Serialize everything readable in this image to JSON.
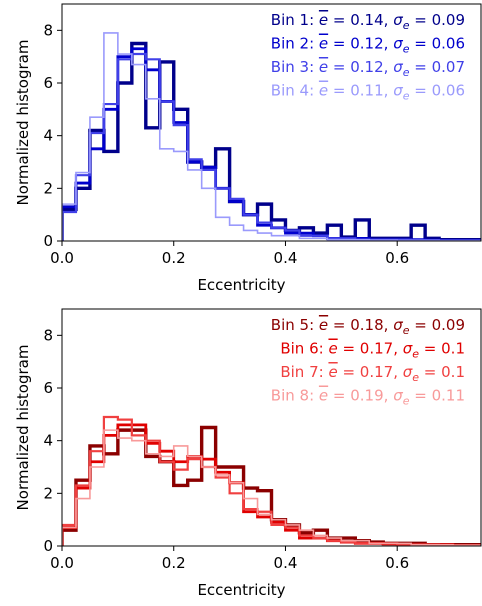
{
  "chart_data": [
    {
      "type": "histogram-step",
      "xlabel": "Eccentricity",
      "ylabel": "Normalized histogram",
      "xlim": [
        0.0,
        0.75
      ],
      "ylim": [
        0,
        9
      ],
      "xticks": [
        "0.0",
        "0.2",
        "0.4",
        "0.6"
      ],
      "yticks": [
        "0",
        "2",
        "4",
        "6",
        "8"
      ],
      "legend_position": "top-right",
      "bin_width": 0.025,
      "series": [
        {
          "name": "Bin 1: ē = 0.14, σe = 0.09",
          "color": "#00008b",
          "stroke": 3.4,
          "values": [
            1.2,
            2.0,
            4.2,
            3.4,
            6.0,
            7.5,
            4.3,
            6.8,
            5.0,
            3.0,
            2.8,
            3.5,
            1.5,
            1.0,
            1.4,
            0.8,
            0.4,
            0.5,
            0.3,
            0.6,
            0.15,
            0.8,
            0.1,
            0.1,
            0.1,
            0.6,
            0.1,
            0.05,
            0.05,
            0.05
          ]
        },
        {
          "name": "Bin 2: ē = 0.12, σe = 0.06",
          "color": "#0000cd",
          "stroke": 2.8,
          "values": [
            1.3,
            2.2,
            3.5,
            5.0,
            7.0,
            7.3,
            6.5,
            5.3,
            4.5,
            3.0,
            2.8,
            2.0,
            1.5,
            1.0,
            0.6,
            0.5,
            0.3,
            0.3,
            0.2,
            0.1,
            0.1,
            0.1,
            0.05,
            0.05,
            0.05,
            0.05,
            0.03,
            0.02,
            0.02,
            0.02
          ]
        },
        {
          "name": "Bin 3: ē = 0.12, σe = 0.07",
          "color": "#4040e8",
          "stroke": 2.2,
          "values": [
            1.1,
            2.5,
            4.1,
            5.2,
            6.9,
            7.1,
            6.9,
            5.3,
            4.4,
            3.1,
            2.7,
            2.0,
            1.6,
            1.0,
            0.7,
            0.5,
            0.4,
            0.2,
            0.2,
            0.1,
            0.1,
            0.05,
            0.05,
            0.05,
            0.05,
            0.03,
            0.03,
            0.02,
            0.02,
            0.02
          ]
        },
        {
          "name": "Bin 4: ē = 0.11, σe = 0.06",
          "color": "#9a9afc",
          "stroke": 1.6,
          "values": [
            1.4,
            2.6,
            4.7,
            7.9,
            7.1,
            6.7,
            5.4,
            3.5,
            3.4,
            2.7,
            2.0,
            0.9,
            0.6,
            0.4,
            0.3,
            0.2,
            0.2,
            0.1,
            0.1,
            0.05,
            0.05,
            0.05,
            0.03,
            0.03,
            0.02,
            0.02,
            0.02,
            0.01,
            0.01,
            0.01
          ]
        }
      ]
    },
    {
      "type": "histogram-step",
      "xlabel": "Eccentricity",
      "ylabel": "Normalized histogram",
      "xlim": [
        0.0,
        0.75
      ],
      "ylim": [
        0,
        9
      ],
      "xticks": [
        "0.0",
        "0.2",
        "0.4",
        "0.6"
      ],
      "yticks": [
        "0",
        "2",
        "4",
        "6",
        "8"
      ],
      "legend_position": "top-right",
      "bin_width": 0.025,
      "series": [
        {
          "name": "Bin 5: ē = 0.18, σe = 0.09",
          "color": "#8b0000",
          "stroke": 3.4,
          "values": [
            0.6,
            2.5,
            3.8,
            3.5,
            4.4,
            4.4,
            3.4,
            3.2,
            2.3,
            2.5,
            4.5,
            3.0,
            3.0,
            2.2,
            2.1,
            1.0,
            0.8,
            0.5,
            0.6,
            0.3,
            0.3,
            0.2,
            0.15,
            0.1,
            0.1,
            0.1,
            0.05,
            0.05,
            0.05,
            0.05
          ]
        },
        {
          "name": "Bin 6: ē = 0.17, σe = 0.1",
          "color": "#e00000",
          "stroke": 2.8,
          "values": [
            0.7,
            2.2,
            3.2,
            4.2,
            4.6,
            4.6,
            3.9,
            3.6,
            3.2,
            3.4,
            3.3,
            2.8,
            2.4,
            1.3,
            1.1,
            0.9,
            0.6,
            0.3,
            0.3,
            0.2,
            0.15,
            0.1,
            0.1,
            0.08,
            0.05,
            0.05,
            0.05,
            0.05,
            0.02,
            0.02
          ]
        },
        {
          "name": "Bin 7: ē = 0.17, σe = 0.1",
          "color": "#f04040",
          "stroke": 2.2,
          "values": [
            0.8,
            2.3,
            3.6,
            4.9,
            4.8,
            4.2,
            4.0,
            3.2,
            2.9,
            3.3,
            3.0,
            2.6,
            2.0,
            1.4,
            1.3,
            0.8,
            0.7,
            0.4,
            0.3,
            0.2,
            0.15,
            0.1,
            0.1,
            0.1,
            0.05,
            0.05,
            0.05,
            0.03,
            0.02,
            0.02
          ]
        },
        {
          "name": "Bin 8: ē = 0.19, σe = 0.11",
          "color": "#f89a9a",
          "stroke": 1.6,
          "values": [
            0.7,
            1.8,
            3.0,
            4.4,
            4.1,
            4.0,
            3.5,
            3.4,
            3.8,
            3.4,
            3.0,
            2.7,
            2.4,
            1.8,
            1.2,
            1.0,
            0.8,
            0.6,
            0.4,
            0.3,
            0.2,
            0.2,
            0.1,
            0.1,
            0.1,
            0.05,
            0.05,
            0.05,
            0.03,
            0.03
          ]
        }
      ]
    }
  ]
}
